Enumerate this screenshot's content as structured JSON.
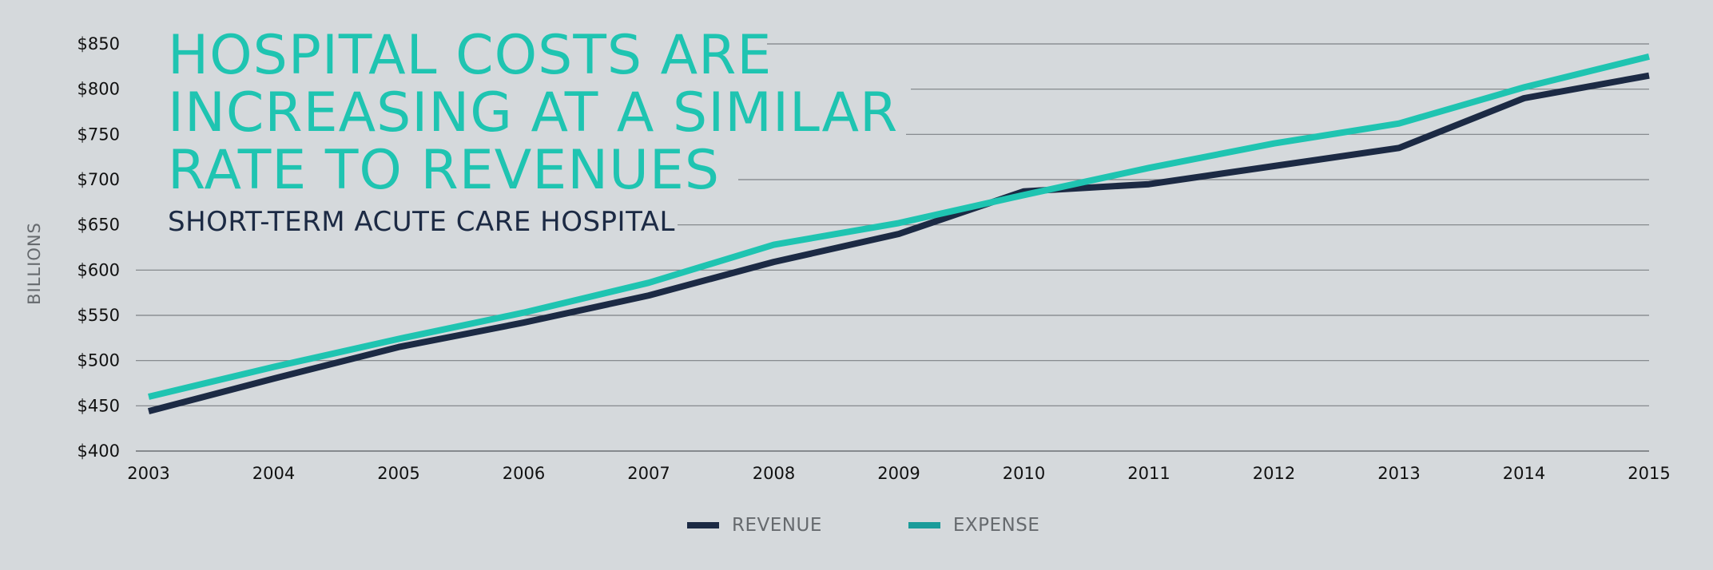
{
  "chart_data": {
    "type": "line",
    "title": [
      "HOSPITAL COSTS ARE",
      "INCREASING AT A SIMILAR",
      "RATE TO REVENUES"
    ],
    "subtitle": "SHORT-TERM ACUTE CARE HOSPITAL",
    "ylabel": "BILLIONS",
    "xlabel": "",
    "x": [
      2003,
      2004,
      2005,
      2006,
      2007,
      2008,
      2009,
      2010,
      2011,
      2012,
      2013,
      2014,
      2015
    ],
    "x_tick_labels": [
      "2003",
      "2004",
      "2005",
      "2006",
      "2007",
      "2008",
      "2009",
      "2010",
      "2011",
      "2012",
      "2013",
      "2014",
      "2015"
    ],
    "ylim": [
      400,
      850
    ],
    "y_ticks": [
      400,
      450,
      500,
      550,
      600,
      650,
      700,
      750,
      800,
      850
    ],
    "y_tick_labels": [
      "$400",
      "$450",
      "$500",
      "$550",
      "$600",
      "$650",
      "$700",
      "$750",
      "$800",
      "$850"
    ],
    "grid": true,
    "legend_position": "bottom-center",
    "series": [
      {
        "name": "REVENUE",
        "color": "#1c2a44",
        "values": [
          444,
          480,
          515,
          542,
          572,
          609,
          640,
          687,
          695,
          715,
          735,
          790,
          815
        ]
      },
      {
        "name": "EXPENSE",
        "color": "#1fc4b1",
        "legend_color": "#1a9c9a",
        "values": [
          460,
          493,
          524,
          553,
          586,
          628,
          652,
          683,
          713,
          740,
          762,
          802,
          836
        ]
      }
    ]
  }
}
